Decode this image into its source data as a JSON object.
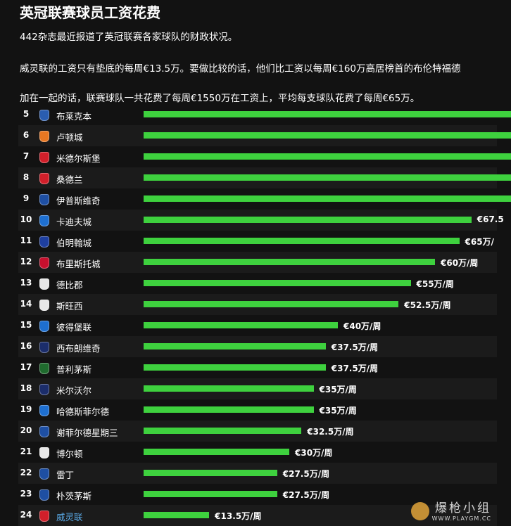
{
  "title": "英冠联赛球员工资花费",
  "paragraphs": [
    "442杂志最近报道了英冠联赛各家球队的财政状况。",
    "威灵联的工资只有垫底的每周€13.5万。要做比较的话，他们比工资以每周€160万高居榜首的布伦特福德",
    "加在一起的话，联赛球队一共花费了每周€1550万在工资上，平均每支球队花费了每周€65万。"
  ],
  "chart_data": {
    "type": "bar",
    "orientation": "horizontal",
    "unit_label": "万/周",
    "currency": "€",
    "ranks": [
      5,
      6,
      7,
      8,
      9,
      10,
      11,
      12,
      13,
      14,
      15,
      16,
      17,
      18,
      19,
      20,
      21,
      22,
      23,
      24
    ],
    "categories": [
      "布莱克本",
      "卢顿城",
      "米德尔斯堡",
      "桑德兰",
      "伊普斯维奇",
      "卡迪夫城",
      "伯明翰城",
      "布里斯托城",
      "德比郡",
      "斯旺西",
      "彼得堡联",
      "西布朗维奇",
      "普利茅斯",
      "米尔沃尔",
      "哈德斯菲尔德",
      "谢菲尔德星期三",
      "博尔顿",
      "雷丁",
      "朴茨茅斯",
      "威灵联"
    ],
    "values": [
      null,
      null,
      null,
      null,
      null,
      67.5,
      65,
      60,
      55,
      52.5,
      40,
      37.5,
      37.5,
      35,
      35,
      32.5,
      30,
      27.5,
      27.5,
      13.5
    ],
    "labels": [
      "",
      "",
      "",
      "",
      "",
      "€67.5",
      "€65万/",
      "€60万/周",
      "€55万/周",
      "€52.5万/周",
      "€40万/周",
      "€37.5万/周",
      "€37.5万/周",
      "€35万/周",
      "€35万/周",
      "€32.5万/周",
      "€30万/周",
      "€27.5万/周",
      "€27.5万/周",
      "€13.5万/周"
    ],
    "highlight_index": 19,
    "bar_color": "#3ed13e",
    "crest_colors": [
      "#2a5db0",
      "#e87722",
      "#d11f2a",
      "#d11f2a",
      "#1e4fa3",
      "#1e6fd0",
      "#1e3fa0",
      "#c8102e",
      "#e8e8e8",
      "#e8e8e8",
      "#1e6fd0",
      "#1b2d6b",
      "#1f6b2e",
      "#1b2d6b",
      "#1e6fd0",
      "#1e4fa3",
      "#e8e8e8",
      "#1e4fa3",
      "#1e4fa3",
      "#d11f2a"
    ]
  },
  "watermark": {
    "cn": "爆枪小组",
    "url": "WWW.PLAYGM.CC"
  }
}
